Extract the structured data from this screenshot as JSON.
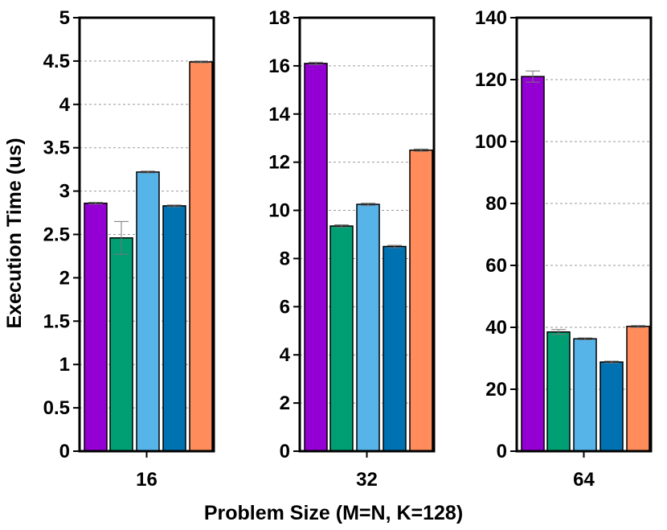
{
  "chart_data": {
    "type": "bar",
    "title": "",
    "xlabel": "Problem Size (M=N, K=128)",
    "ylabel": "Execution Time (us)",
    "grid": "horizontal dashed",
    "series_colors": [
      "#9400d3",
      "#009e73",
      "#56b4e9",
      "#0072b2",
      "#ff8c5a"
    ],
    "panels": [
      {
        "category": "16",
        "ylim": [
          0,
          5
        ],
        "yticks": [
          "0",
          "0.5",
          "1",
          "1.5",
          "2",
          "2.5",
          "3",
          "3.5",
          "4",
          "4.5",
          "5"
        ],
        "values": [
          2.86,
          2.46,
          3.22,
          2.83,
          4.49
        ],
        "errors": [
          0.01,
          0.19,
          0.01,
          0.01,
          0.01
        ]
      },
      {
        "category": "32",
        "ylim": [
          0,
          18
        ],
        "yticks": [
          "0",
          "2",
          "4",
          "6",
          "8",
          "10",
          "12",
          "14",
          "16",
          "18"
        ],
        "values": [
          16.1,
          9.35,
          10.25,
          8.5,
          12.5
        ],
        "errors": [
          0.05,
          0.05,
          0.05,
          0.05,
          0.05
        ]
      },
      {
        "category": "64",
        "ylim": [
          0,
          140
        ],
        "yticks": [
          "0",
          "20",
          "40",
          "60",
          "80",
          "100",
          "120",
          "140"
        ],
        "values": [
          121,
          38.5,
          36.3,
          28.8,
          40.3
        ],
        "errors": [
          1.8,
          0.8,
          0.3,
          0.3,
          0.3
        ]
      }
    ]
  }
}
